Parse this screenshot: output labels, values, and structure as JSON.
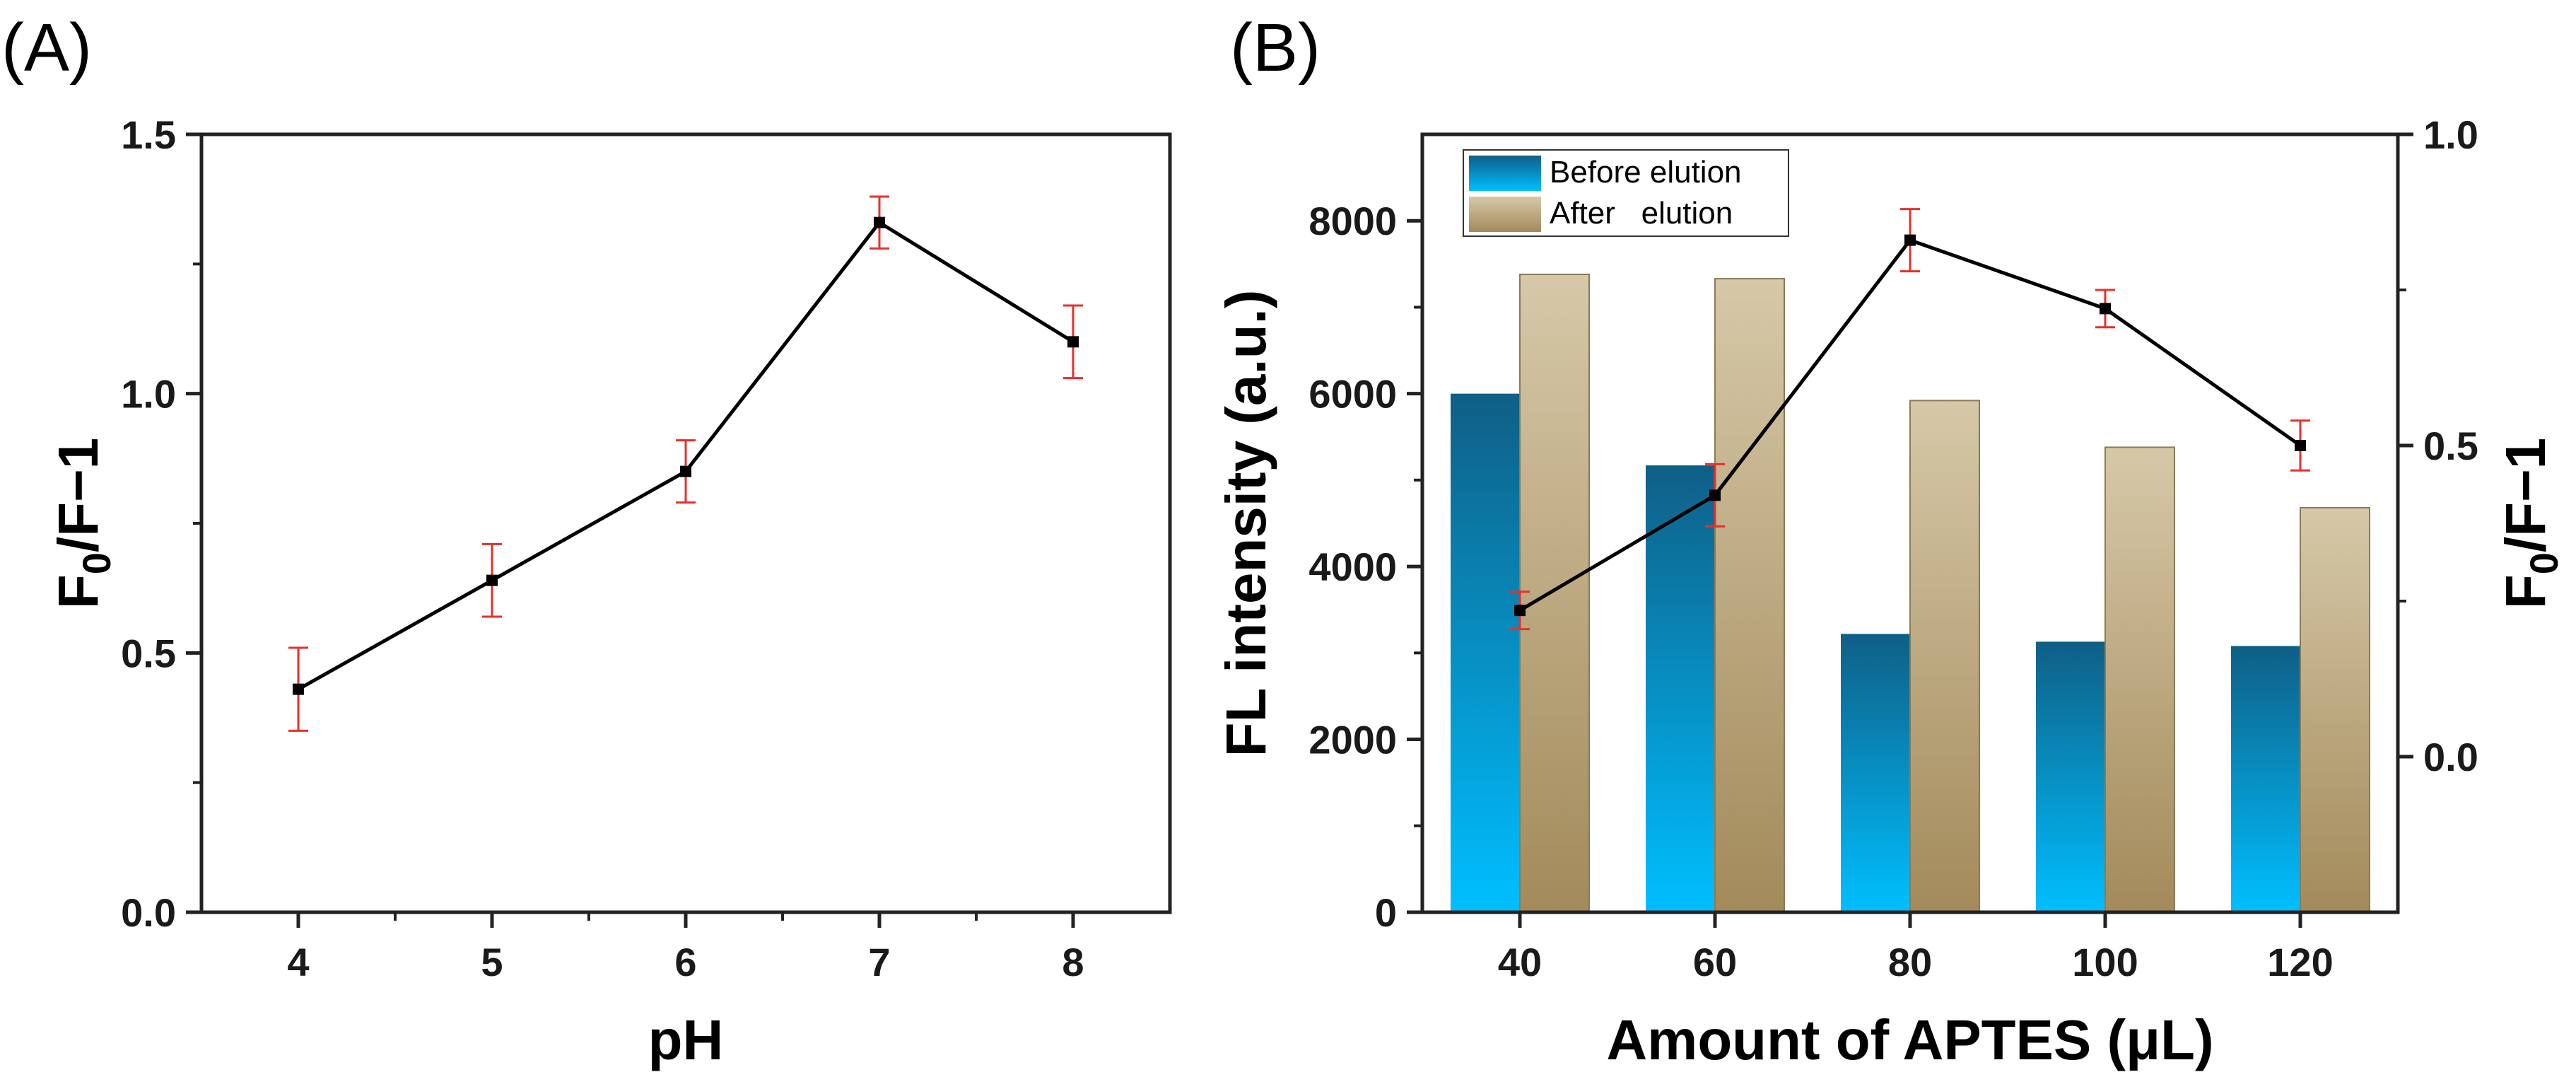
{
  "chart_data": [
    {
      "panel": "(A)",
      "type": "line",
      "x": [
        4,
        5,
        6,
        7,
        8
      ],
      "y": [
        0.43,
        0.64,
        0.85,
        1.33,
        1.1
      ],
      "error": [
        0.08,
        0.07,
        0.06,
        0.05,
        0.07
      ],
      "xlabel": "pH",
      "ylabel": "F₀/F−1",
      "ylabel_main": "F",
      "ylabel_sub": "0",
      "ylabel_rest": "/F−1",
      "xlim": [
        3.5,
        8.5
      ],
      "ylim": [
        0,
        1.5
      ],
      "xticks": [
        "4",
        "5",
        "6",
        "7",
        "8"
      ],
      "yticks": [
        "0.0",
        "0.5",
        "1.0",
        "1.5"
      ],
      "line_color": "#000000",
      "error_color": "#e8302a"
    },
    {
      "panel": "(B)",
      "type": "bar",
      "categories": [
        "40",
        "60",
        "80",
        "100",
        "120"
      ],
      "series": [
        {
          "name": "Before elution",
          "values": [
            6000,
            5170,
            3220,
            3130,
            3080
          ],
          "color_top": "#0f5f86",
          "color_bottom": "#00bfff"
        },
        {
          "name": "After   elution",
          "values": [
            7380,
            7330,
            5920,
            5380,
            4680
          ],
          "color_top": "#d6c8a8",
          "color_bottom": "#a38a5a"
        }
      ],
      "line_series": {
        "name": "F₀/F−1",
        "axis": "right",
        "values": [
          0.235,
          0.42,
          0.83,
          0.72,
          0.5
        ],
        "error": [
          0.03,
          0.05,
          0.05,
          0.03,
          0.04
        ]
      },
      "xlabel": "Amount of APTES (μL)",
      "ylabel": "FL intensity (a.u.)",
      "y2label": "F₀/F−1",
      "y2label_main": "F",
      "y2label_sub": "0",
      "y2label_rest": "/F−1",
      "ylim": [
        0,
        9000
      ],
      "y2lim": [
        -0.25,
        1.0
      ],
      "yticks": [
        "0",
        "2000",
        "4000",
        "6000",
        "8000"
      ],
      "y2ticks": [
        "0.0",
        "0.5",
        "1.0"
      ],
      "legend_position": "top-left",
      "line_color": "#000000",
      "error_color": "#e8302a"
    }
  ]
}
